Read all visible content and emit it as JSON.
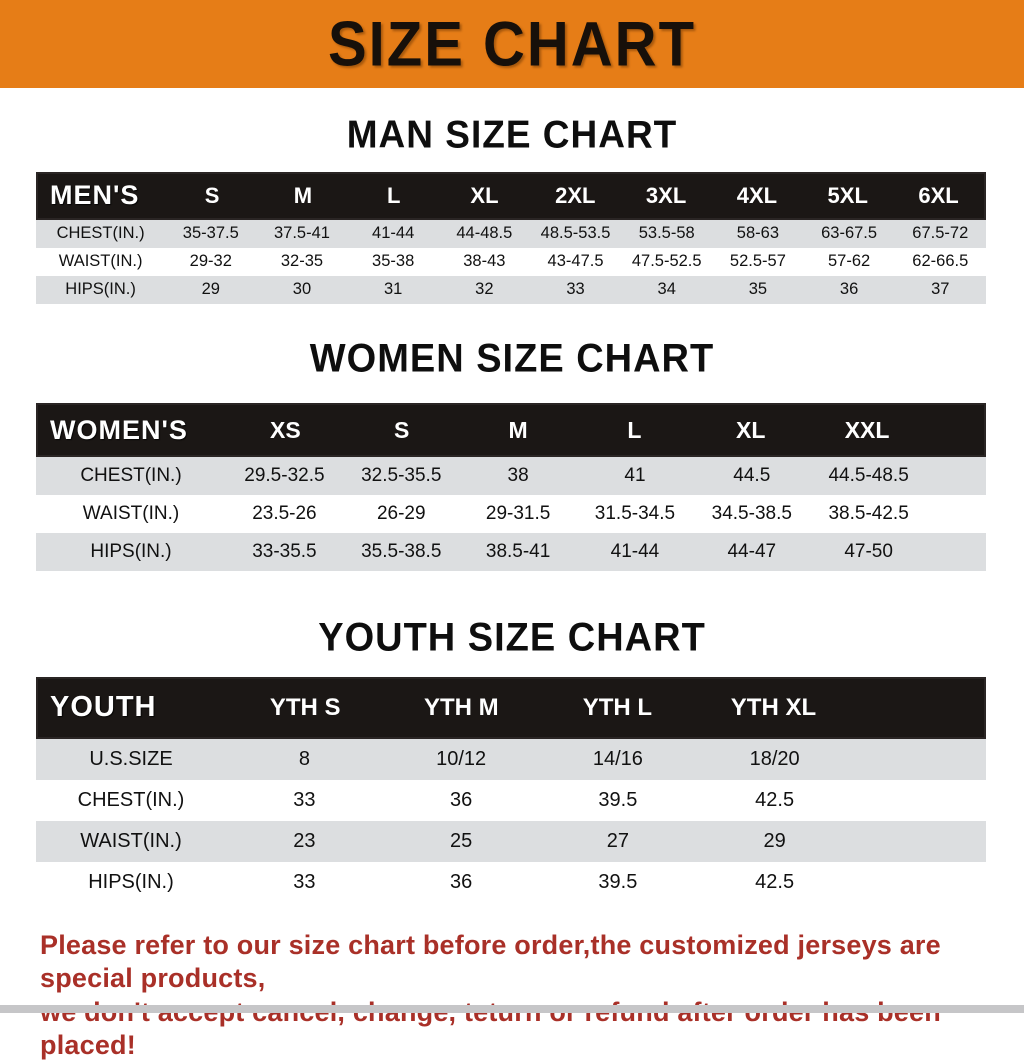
{
  "banner": {
    "title": "SIZE CHART"
  },
  "sections": [
    {
      "title": "MAN SIZE CHART",
      "table": {
        "label": "MEN'S",
        "sizes": [
          "S",
          "M",
          "L",
          "XL",
          "2XL",
          "3XL",
          "4XL",
          "5XL",
          "6XL"
        ],
        "rows": [
          {
            "label": "CHEST(IN.)",
            "values": [
              "35-37.5",
              "37.5-41",
              "41-44",
              "44-48.5",
              "48.5-53.5",
              "53.5-58",
              "58-63",
              "63-67.5",
              "67.5-72"
            ]
          },
          {
            "label": "WAIST(IN.)",
            "values": [
              "29-32",
              "32-35",
              "35-38",
              "38-43",
              "43-47.5",
              "47.5-52.5",
              "52.5-57",
              "57-62",
              "62-66.5"
            ]
          },
          {
            "label": "HIPS(IN.)",
            "values": [
              "29",
              "30",
              "31",
              "32",
              "33",
              "34",
              "35",
              "36",
              "37"
            ]
          }
        ]
      }
    },
    {
      "title": "WOMEN SIZE CHART",
      "table": {
        "label": "WOMEN'S",
        "sizes": [
          "XS",
          "S",
          "M",
          "L",
          "XL",
          "XXL"
        ],
        "rows": [
          {
            "label": "CHEST(IN.)",
            "values": [
              "29.5-32.5",
              "32.5-35.5",
              "38",
              "41",
              "44.5",
              "44.5-48.5"
            ]
          },
          {
            "label": "WAIST(IN.)",
            "values": [
              "23.5-26",
              "26-29",
              "29-31.5",
              "31.5-34.5",
              "34.5-38.5",
              "38.5-42.5"
            ]
          },
          {
            "label": "HIPS(IN.)",
            "values": [
              "33-35.5",
              "35.5-38.5",
              "38.5-41",
              "41-44",
              "44-47",
              "47-50"
            ]
          }
        ]
      }
    },
    {
      "title": "YOUTH SIZE CHART",
      "table": {
        "label": "YOUTH",
        "sizes": [
          "YTH S",
          "YTH M",
          "YTH L",
          "YTH XL"
        ],
        "rows": [
          {
            "label": "U.S.SIZE",
            "values": [
              "8",
              "10/12",
              "14/16",
              "18/20"
            ]
          },
          {
            "label": "CHEST(IN.)",
            "values": [
              "33",
              "36",
              "39.5",
              "42.5"
            ]
          },
          {
            "label": "WAIST(IN.)",
            "values": [
              "23",
              "25",
              "27",
              "29"
            ]
          },
          {
            "label": "HIPS(IN.)",
            "values": [
              "33",
              "36",
              "39.5",
              "42.5"
            ]
          }
        ]
      }
    }
  ],
  "note": {
    "lines": [
      "Please refer to our size chart before order,the customized jerseys are special products,",
      "we don't accept cancel, change, teturn or refund after order has been placed!"
    ]
  },
  "colors": {
    "banner_bg": "#e67d17",
    "header_bar_bg": "#1b1715",
    "row_stripe": "#dcdee0",
    "note_text": "#a93028",
    "bottom_strip": "#c6c6c8"
  }
}
